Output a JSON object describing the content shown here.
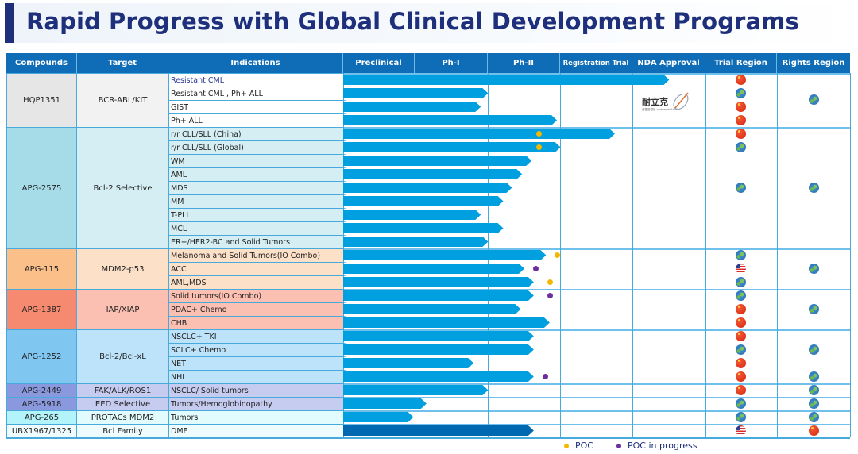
{
  "title": "Rapid Progress with Global Clinical Development Programs",
  "headers": {
    "compounds": "Compounds",
    "target": "Target",
    "indications": "Indications",
    "preclinical": "Preclinical",
    "ph1": "Ph-I",
    "ph2": "Ph-II",
    "registration": "Registration Trial",
    "nda": "NDA Approval",
    "trial_region": "Trial Region",
    "rights_region": "Rights Region"
  },
  "colors": {
    "header": "#0f6cb6",
    "bar": "#009fdf",
    "bar_dark": "#0067b1",
    "poc": "#f5b800",
    "poc_in_progress": "#6b2fa0",
    "title": "#1e2f7c"
  },
  "nda_logo": {
    "name": "耐立克",
    "subtitle": "奥雷巴替尼 olverembatinib"
  },
  "groups": [
    {
      "compound": "HQP1351",
      "target": "BCR-ABL/KIT",
      "compound_color": "#e6e6e6",
      "target_color": "#f2f2f2",
      "ind_color": "#ffffff",
      "rights": [
        "globe"
      ],
      "rights_row": 1.5
    },
    {
      "compound": "APG-2575",
      "target": "Bcl-2 Selective",
      "compound_color": "#a6dce8",
      "target_color": "#d4eef3",
      "ind_color": "#d4eef3",
      "rights": [
        "globe"
      ],
      "rights_row": 4
    },
    {
      "compound": "APG-115",
      "target": "MDM2-p53",
      "compound_color": "#fbbf8a",
      "target_color": "#fde0c8",
      "ind_color": "#fde0c8",
      "rights": [
        "globe"
      ],
      "rights_row": 1
    },
    {
      "compound": "APG-1387",
      "target": "IAP/XIAP",
      "compound_color": "#f58a70",
      "target_color": "#fcc0b3",
      "ind_color": "#fcc0b3",
      "rights": [
        "globe"
      ],
      "rights_row": 1
    },
    {
      "compound": "APG-1252",
      "target": "Bcl-2/Bcl-xL",
      "compound_color": "#7fc7f1",
      "target_color": "#bde3fa",
      "ind_color": "#bde3fa",
      "rights": [],
      "rights_row": 0
    },
    {
      "compound": "APG-2449",
      "target": "FAK/ALK/ROS1",
      "compound_color": "#8a98de",
      "target_color": "#c6cbf0",
      "ind_color": "#c6cbf0",
      "rights": [],
      "rights_row": 0
    },
    {
      "compound": "APG-5918",
      "target": "EED Selective",
      "compound_color": "#8a98de",
      "target_color": "#c6cbf0",
      "ind_color": "#c6cbf0",
      "rights": [],
      "rights_row": 0
    },
    {
      "compound": "APG-265",
      "target": "PROTACs MDM2",
      "compound_color": "#b2f4fa",
      "target_color": "#e2fbfd",
      "ind_color": "#e2fbfd",
      "rights": [],
      "rights_row": 0
    },
    {
      "compound": "UBX1967/1325",
      "target": "Bcl Family",
      "compound_color": "#eefcfe",
      "target_color": "#eefcfe",
      "ind_color": "#eefcfe",
      "rights": [],
      "rights_row": 0
    }
  ],
  "rows": [
    {
      "group": 0,
      "indication": "Resistant CML",
      "progress": 4.5,
      "trial": "cn",
      "rights": ""
    },
    {
      "group": 0,
      "indication": "Resistant CML , Ph+ ALL",
      "progress": 2.0,
      "trial": "globe",
      "rights": ""
    },
    {
      "group": 0,
      "indication": "GIST",
      "progress": 1.9,
      "trial": "cn",
      "rights": ""
    },
    {
      "group": 0,
      "indication": "Ph+ ALL",
      "progress": 2.95,
      "trial": "cn",
      "rights": ""
    },
    {
      "group": 1,
      "indication": "r/r CLL/SLL (China)",
      "progress": 3.75,
      "trial": "cn",
      "rights": "",
      "marker": "poc",
      "marker_pos": 2.7
    },
    {
      "group": 1,
      "indication": "r/r CLL/SLL (Global)",
      "progress": 3.0,
      "trial": "globe",
      "rights": "",
      "marker": "poc",
      "marker_pos": 2.7
    },
    {
      "group": 1,
      "indication": "WM",
      "progress": 2.6,
      "trial": "",
      "rights": ""
    },
    {
      "group": 1,
      "indication": "AML",
      "progress": 2.47,
      "trial": "",
      "rights": ""
    },
    {
      "group": 1,
      "indication": "MDS",
      "progress": 2.33,
      "trial": "globe",
      "rights": "globe"
    },
    {
      "group": 1,
      "indication": "MM",
      "progress": 2.21,
      "trial": "",
      "rights": ""
    },
    {
      "group": 1,
      "indication": "T-PLL",
      "progress": 1.9,
      "trial": "",
      "rights": ""
    },
    {
      "group": 1,
      "indication": "MCL",
      "progress": 2.21,
      "trial": "",
      "rights": ""
    },
    {
      "group": 1,
      "indication": "ER+/HER2-BC and Solid Tumors",
      "progress": 2.0,
      "trial": "",
      "rights": ""
    },
    {
      "group": 2,
      "indication": "Melanoma and Solid Tumors(IO Combo)",
      "progress": 2.8,
      "trial": "globe",
      "rights": "",
      "marker": "poc",
      "marker_pos": 2.95
    },
    {
      "group": 2,
      "indication": "ACC",
      "progress": 2.5,
      "trial": "us",
      "rights": "globe",
      "marker": "progress",
      "marker_pos": 2.65
    },
    {
      "group": 2,
      "indication": "AML,MDS",
      "progress": 2.63,
      "trial": "globe",
      "rights": "",
      "marker": "poc",
      "marker_pos": 2.85
    },
    {
      "group": 3,
      "indication": "Solid tumors(IO Combo)",
      "progress": 2.63,
      "trial": "globe",
      "rights": "",
      "marker": "progress",
      "marker_pos": 2.85
    },
    {
      "group": 3,
      "indication": "PDAC+ Chemo",
      "progress": 2.45,
      "trial": "cn",
      "rights": "globe"
    },
    {
      "group": 3,
      "indication": "CHB",
      "progress": 2.85,
      "trial": "cn",
      "rights": ""
    },
    {
      "group": 4,
      "indication": "NSCLC+ TKI",
      "progress": 2.63,
      "trial": "cn",
      "rights": ""
    },
    {
      "group": 4,
      "indication": "SCLC+ Chemo",
      "progress": 2.63,
      "trial": "globe",
      "rights": "globe"
    },
    {
      "group": 4,
      "indication": "NET",
      "progress": 1.8,
      "trial": "cn",
      "rights": ""
    },
    {
      "group": 4,
      "indication": "NHL",
      "progress": 2.63,
      "trial": "cn",
      "rights": "globe",
      "marker": "progress",
      "marker_pos": 2.78
    },
    {
      "group": 5,
      "indication": "NSCLC/ Solid tumors",
      "progress": 2.0,
      "trial": "cn",
      "rights": "globe"
    },
    {
      "group": 6,
      "indication": "Tumors/Hemoglobinopathy",
      "progress": 1.15,
      "trial": "globe",
      "rights": "globe"
    },
    {
      "group": 7,
      "indication": "Tumors",
      "progress": 0.97,
      "trial": "globe",
      "rights": "globe"
    },
    {
      "group": 8,
      "indication": "DME",
      "progress": 2.63,
      "trial": "us",
      "rights": "cn",
      "dark": true
    }
  ],
  "hqp_rights": "globe",
  "legend": {
    "poc": "POC",
    "poc_in_progress": "POC in progress"
  }
}
